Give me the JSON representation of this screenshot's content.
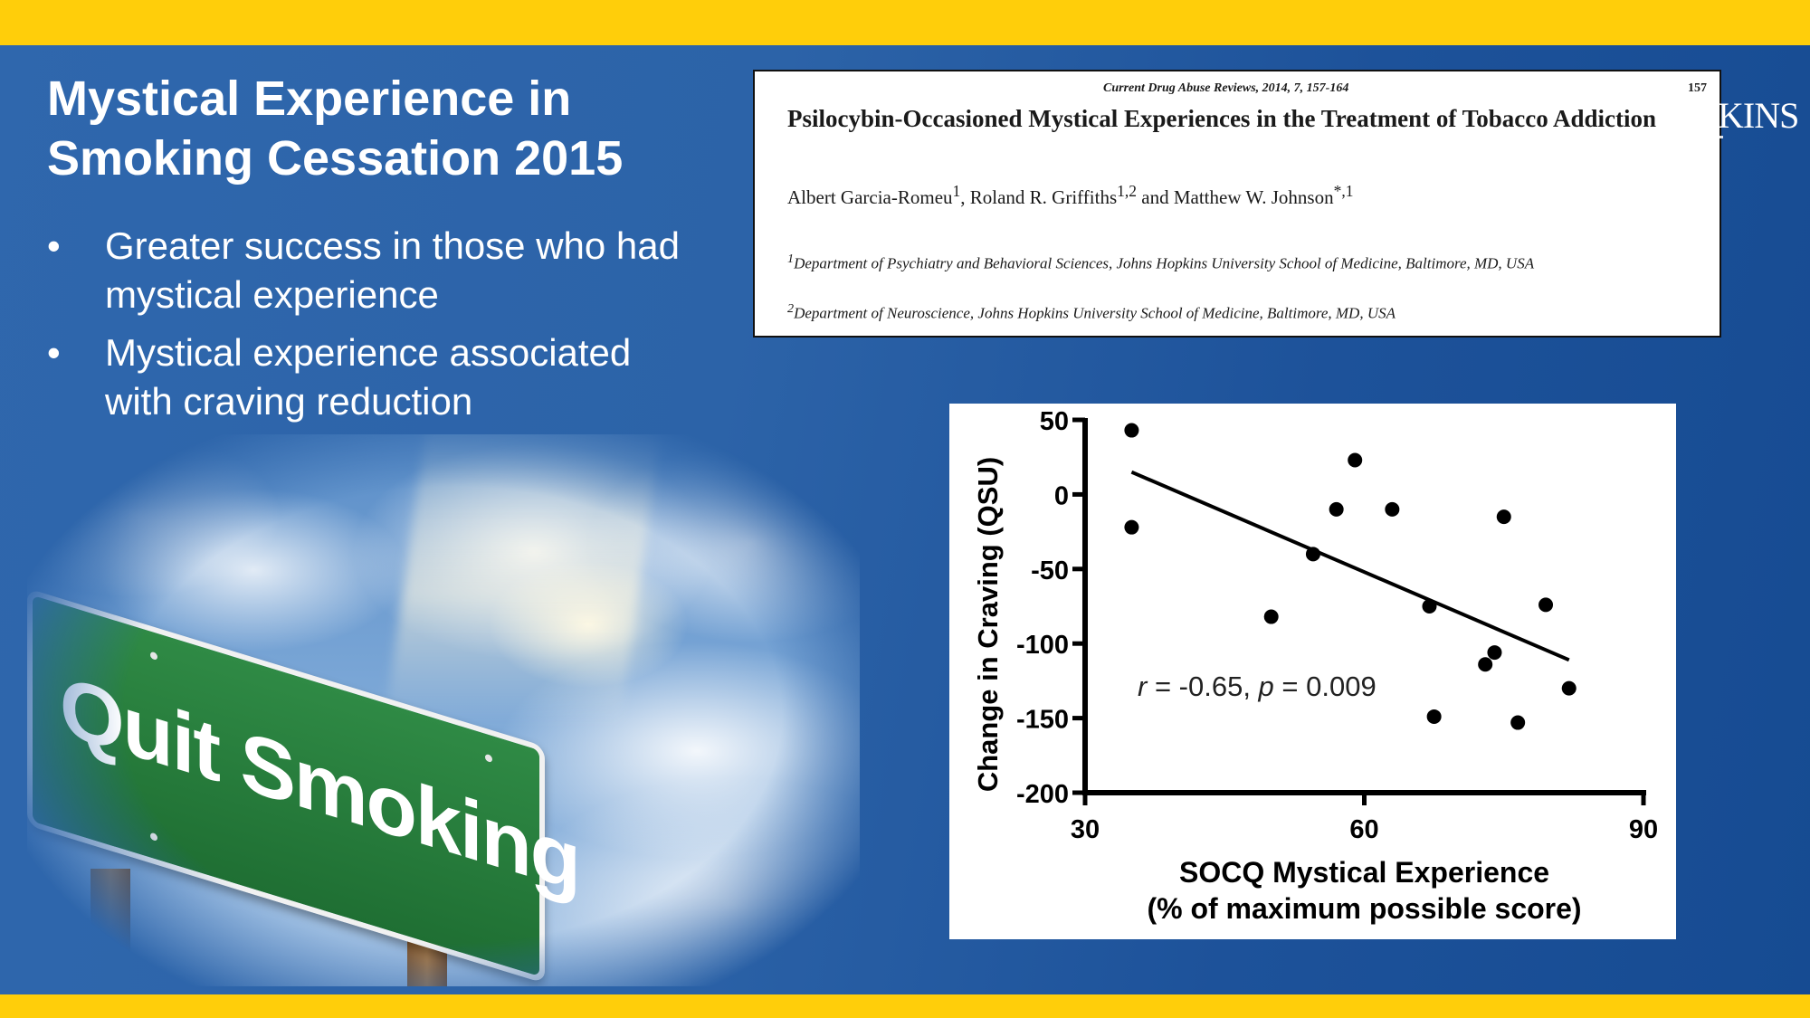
{
  "slide": {
    "title": "Mystical Experience in Smoking Cessation 2015",
    "bullets": [
      "Greater success in those who had mystical experience",
      "Mystical experience associated with craving reduction"
    ],
    "bullet_marker": "•",
    "colors": {
      "bar": "#ffce0a",
      "background": "#2c63a8",
      "text": "#ffffff"
    }
  },
  "image": {
    "sign_text": "Quit Smoking"
  },
  "paper": {
    "journal": "Current Drug Abuse Reviews, 2014, 7, 157-164",
    "page": "157",
    "title": "Psilocybin-Occasioned Mystical Experiences in the Treatment of Tobacco Addiction",
    "authors": {
      "a1": "Albert Garcia-Romeu",
      "a1_sup": "1",
      "a2": ", Roland R. Griffiths",
      "a2_sup": "1,2",
      "a3": " and Matthew W. Johnson",
      "a3_sup": "*,1"
    },
    "affiliation1_sup": "1",
    "affiliation1": "Department of Psychiatry and Behavioral Sciences, Johns Hopkins University School of Medicine, Baltimore, MD, USA",
    "affiliation2_sup": "2",
    "affiliation2": "Department of Neuroscience, Johns Hopkins University School of Medicine, Baltimore, MD, USA"
  },
  "logo_partial": "KINS",
  "chart_data": {
    "type": "scatter",
    "xlabel_line1": "SOCQ Mystical Experience",
    "xlabel_line2": "(% of maximum possible score)",
    "ylabel": "Change in Craving (QSU)",
    "xlim": [
      30,
      90
    ],
    "ylim": [
      -200,
      50
    ],
    "xticks": [
      30,
      60,
      90
    ],
    "yticks": [
      50,
      0,
      -50,
      -100,
      -150,
      -200
    ],
    "points": [
      {
        "x": 35,
        "y": 43
      },
      {
        "x": 35,
        "y": -22
      },
      {
        "x": 50,
        "y": -82
      },
      {
        "x": 54.5,
        "y": -40
      },
      {
        "x": 57,
        "y": -10
      },
      {
        "x": 59,
        "y": 23
      },
      {
        "x": 63,
        "y": -10
      },
      {
        "x": 67,
        "y": -75
      },
      {
        "x": 67.5,
        "y": -149
      },
      {
        "x": 73,
        "y": -114
      },
      {
        "x": 74,
        "y": -106
      },
      {
        "x": 75,
        "y": -15
      },
      {
        "x": 76.5,
        "y": -153
      },
      {
        "x": 79.5,
        "y": -74
      },
      {
        "x": 82,
        "y": -130
      }
    ],
    "fit_line": {
      "x1": 35,
      "y1": 15,
      "x2": 82,
      "y2": -111
    },
    "annotation": {
      "r_symbol": "r",
      "r_text": " = -0.65, ",
      "p_symbol": "p",
      "p_text": " = 0.009"
    },
    "color": "#000000"
  }
}
